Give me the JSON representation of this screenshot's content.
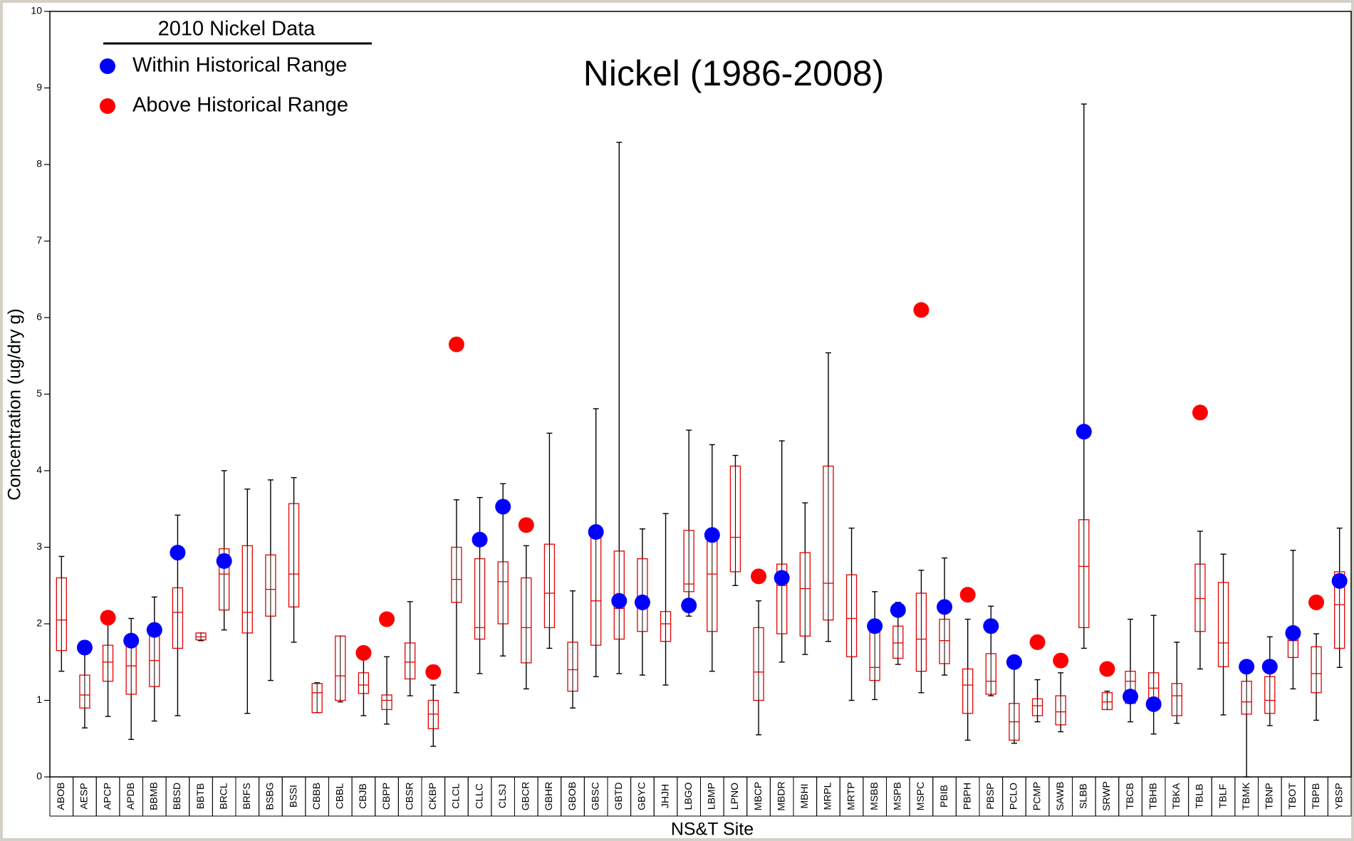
{
  "chart_data": {
    "type": "box",
    "title": "Nickel (1986-2008)",
    "xlabel": "NS&T Site",
    "ylabel": "Concentration (ug/dry g)",
    "legend_title": "2010 Nickel Data",
    "legend": "top-left",
    "box_color": "#e00000",
    "whisker_color": "#000000",
    "ylim": [
      0,
      10
    ],
    "yticks": [
      0,
      1,
      2,
      3,
      4,
      5,
      6,
      7,
      8,
      9,
      10
    ],
    "categories": [
      "ABOB",
      "AESP",
      "APCP",
      "APDB",
      "BBMB",
      "BBSD",
      "BBTB",
      "BRCL",
      "BRFS",
      "BSBG",
      "BSSI",
      "CBBB",
      "CBBL",
      "CBJB",
      "CBPP",
      "CBSR",
      "CKBP",
      "CLCL",
      "CLLC",
      "CLSJ",
      "GBCR",
      "GBHR",
      "GBOB",
      "GBSC",
      "GBTD",
      "GBYC",
      "JHJH",
      "LBGO",
      "LBMP",
      "LPNO",
      "MBCP",
      "MBDR",
      "MBHI",
      "MRPL",
      "MRTP",
      "MSBB",
      "MSPB",
      "MSPC",
      "PBIB",
      "PBPH",
      "PBSP",
      "PCLO",
      "PCMP",
      "SAWB",
      "SLBB",
      "SRWP",
      "TBCB",
      "TBHB",
      "TBKA",
      "TBLB",
      "TBLF",
      "TBMK",
      "TBNP",
      "TBOT",
      "TBPB",
      "YBSP"
    ],
    "min": [
      1.38,
      0.64,
      0.79,
      0.49,
      0.73,
      0.8,
      1.78,
      1.92,
      0.83,
      1.26,
      1.76,
      0.84,
      0.98,
      0.8,
      0.69,
      1.06,
      0.4,
      1.1,
      1.35,
      1.58,
      1.15,
      1.68,
      0.9,
      1.31,
      1.35,
      1.33,
      1.2,
      2.1,
      1.38,
      2.5,
      0.55,
      1.5,
      1.6,
      1.77,
      1.0,
      1.01,
      1.47,
      1.1,
      1.33,
      0.48,
      1.06,
      0.44,
      0.72,
      0.59,
      1.68,
      0.88,
      0.72,
      0.56,
      0.7,
      1.41,
      0.81,
      0.0,
      0.67,
      1.15,
      0.74,
      1.43
    ],
    "q1": [
      1.65,
      0.9,
      1.25,
      1.08,
      1.18,
      1.68,
      1.79,
      2.18,
      1.88,
      2.1,
      2.22,
      0.84,
      1.0,
      1.09,
      0.88,
      1.28,
      0.63,
      2.28,
      1.8,
      2.0,
      1.49,
      1.95,
      1.12,
      1.72,
      1.8,
      1.9,
      1.77,
      2.42,
      1.9,
      2.68,
      1.0,
      1.87,
      1.84,
      2.05,
      1.57,
      1.26,
      1.55,
      1.38,
      1.48,
      0.83,
      1.08,
      0.48,
      0.8,
      0.68,
      1.95,
      0.88,
      0.96,
      0.93,
      0.8,
      1.9,
      1.44,
      0.82,
      0.83,
      1.56,
      1.1,
      1.68
    ],
    "median": [
      2.05,
      1.07,
      1.5,
      1.45,
      1.52,
      2.15,
      1.83,
      2.65,
      2.15,
      2.45,
      2.65,
      1.1,
      1.32,
      1.2,
      1.0,
      1.5,
      0.82,
      2.58,
      1.95,
      2.55,
      1.95,
      2.4,
      1.4,
      2.3,
      2.2,
      2.25,
      2.0,
      2.52,
      2.65,
      3.13,
      1.37,
      2.5,
      2.46,
      2.53,
      2.07,
      1.43,
      1.75,
      1.8,
      1.78,
      1.2,
      1.25,
      0.72,
      0.93,
      0.85,
      2.75,
      0.98,
      1.25,
      1.16,
      1.06,
      2.33,
      1.75,
      0.98,
      1.0,
      1.78,
      1.35,
      2.25
    ],
    "q3": [
      2.6,
      1.33,
      1.72,
      1.75,
      1.9,
      2.47,
      1.88,
      2.98,
      3.02,
      2.9,
      3.57,
      1.22,
      1.84,
      1.36,
      1.07,
      1.75,
      1.0,
      3.0,
      2.85,
      2.81,
      2.6,
      3.04,
      1.76,
      3.13,
      2.95,
      2.85,
      2.16,
      3.22,
      3.14,
      4.06,
      1.95,
      2.78,
      2.93,
      4.06,
      2.64,
      1.95,
      1.97,
      2.4,
      2.06,
      1.41,
      1.61,
      0.96,
      1.02,
      1.06,
      3.36,
      1.1,
      1.38,
      1.36,
      1.22,
      2.78,
      2.54,
      1.25,
      1.31,
      1.87,
      1.7,
      2.68
    ],
    "max": [
      2.88,
      1.6,
      2.0,
      2.07,
      2.35,
      3.42,
      1.88,
      4.0,
      3.76,
      3.88,
      3.91,
      1.23,
      1.84,
      1.55,
      1.57,
      2.29,
      1.2,
      3.62,
      3.65,
      3.83,
      3.02,
      4.49,
      2.43,
      4.81,
      8.29,
      3.24,
      3.44,
      4.53,
      4.34,
      4.2,
      2.3,
      4.39,
      3.58,
      5.54,
      3.25,
      2.42,
      2.28,
      2.7,
      2.86,
      2.06,
      2.23,
      1.5,
      1.27,
      1.36,
      8.79,
      1.12,
      2.06,
      2.11,
      1.76,
      3.21,
      2.91,
      1.44,
      1.83,
      2.96,
      1.87,
      3.25
    ],
    "series": [
      {
        "name": "Within Historical Range",
        "color": "#0000ff",
        "values": [
          null,
          1.69,
          null,
          1.78,
          1.92,
          2.93,
          null,
          2.82,
          null,
          null,
          null,
          null,
          null,
          null,
          null,
          null,
          null,
          null,
          3.1,
          3.53,
          null,
          null,
          null,
          3.2,
          2.3,
          2.28,
          null,
          2.24,
          3.16,
          null,
          null,
          2.6,
          null,
          null,
          null,
          1.97,
          2.18,
          null,
          2.22,
          null,
          1.97,
          1.5,
          null,
          null,
          4.51,
          null,
          1.05,
          0.95,
          null,
          null,
          null,
          1.44,
          1.44,
          1.88,
          null,
          2.56
        ]
      },
      {
        "name": "Above Historical Range",
        "color": "#ff0000",
        "values": [
          null,
          null,
          2.08,
          null,
          null,
          null,
          null,
          null,
          null,
          null,
          null,
          null,
          null,
          1.62,
          2.06,
          null,
          1.37,
          5.65,
          null,
          null,
          3.29,
          null,
          null,
          null,
          null,
          null,
          null,
          null,
          null,
          null,
          2.62,
          null,
          null,
          null,
          null,
          null,
          null,
          6.1,
          null,
          2.38,
          null,
          null,
          1.76,
          1.52,
          null,
          1.41,
          null,
          null,
          null,
          4.76,
          null,
          null,
          null,
          null,
          2.28,
          null
        ]
      }
    ]
  }
}
